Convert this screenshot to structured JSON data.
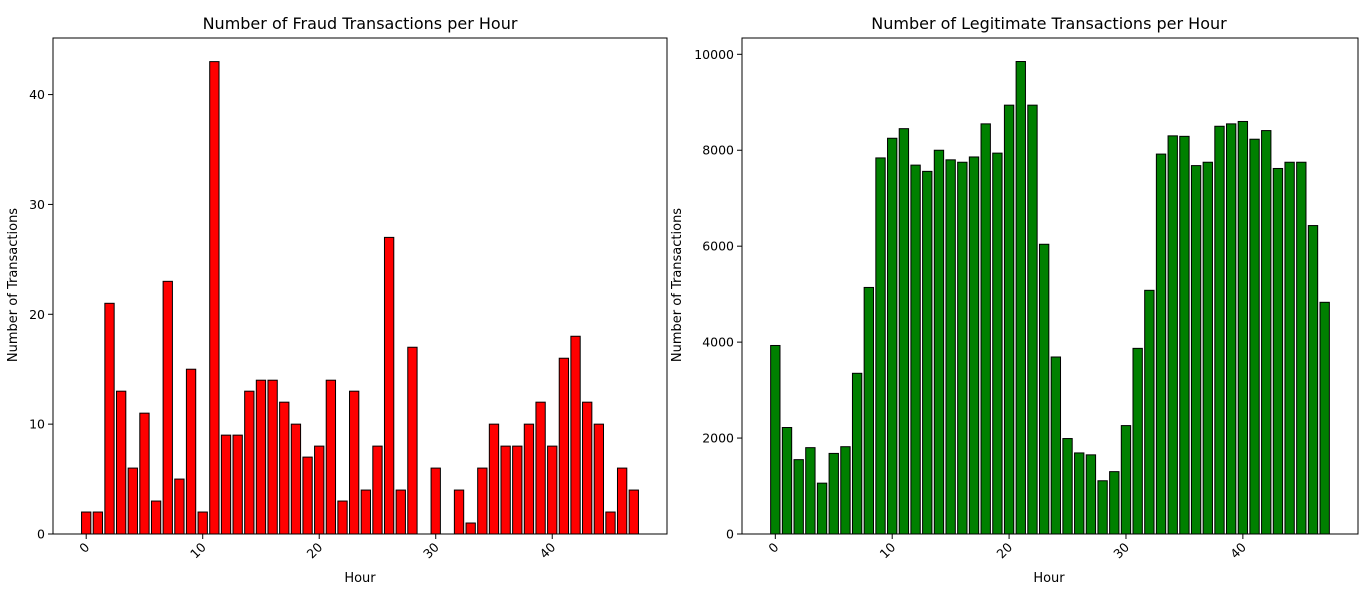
{
  "chart_data": [
    {
      "type": "bar",
      "title": "Number of Fraud Transactions per Hour",
      "xlabel": "Hour",
      "ylabel": "Number of Transactions",
      "color": "#ff0000",
      "edge_color": "#000000",
      "x": [
        0,
        1,
        2,
        3,
        4,
        5,
        6,
        7,
        8,
        9,
        10,
        11,
        12,
        13,
        14,
        15,
        16,
        17,
        18,
        19,
        20,
        21,
        22,
        23,
        24,
        25,
        26,
        27,
        28,
        29,
        30,
        31,
        32,
        33,
        34,
        35,
        36,
        37,
        38,
        39,
        40,
        41,
        42,
        43,
        44,
        45,
        46,
        47
      ],
      "values": [
        2,
        2,
        21,
        13,
        6,
        11,
        3,
        23,
        5,
        15,
        2,
        43,
        9,
        9,
        13,
        14,
        14,
        12,
        10,
        7,
        8,
        14,
        3,
        13,
        4,
        8,
        27,
        4,
        17,
        0,
        6,
        0,
        4,
        1,
        6,
        10,
        8,
        8,
        10,
        12,
        8,
        16,
        18,
        12,
        10,
        2,
        6,
        4
      ],
      "xticks": [
        0,
        10,
        20,
        30,
        40
      ],
      "xtick_labels": [
        "0",
        "10",
        "20",
        "30",
        "40"
      ],
      "yticks": [
        0,
        10,
        20,
        30,
        40
      ],
      "ytick_labels": [
        "0",
        "10",
        "20",
        "30",
        "40"
      ],
      "xlim": [
        -2.85,
        49.85
      ],
      "ylim": [
        0,
        45.15
      ],
      "grid": false
    },
    {
      "type": "bar",
      "title": "Number of Legitimate Transactions per Hour",
      "xlabel": "Hour",
      "ylabel": "Number of Transactions",
      "color": "#008000",
      "edge_color": "#000000",
      "x": [
        0,
        1,
        2,
        3,
        4,
        5,
        6,
        7,
        8,
        9,
        10,
        11,
        12,
        13,
        14,
        15,
        16,
        17,
        18,
        19,
        20,
        21,
        22,
        23,
        24,
        25,
        26,
        27,
        28,
        29,
        30,
        31,
        32,
        33,
        34,
        35,
        36,
        37,
        38,
        39,
        40,
        41,
        42,
        43,
        44,
        45,
        46,
        47
      ],
      "values": [
        3930,
        2220,
        1550,
        1800,
        1060,
        1680,
        1820,
        3350,
        5140,
        7840,
        8250,
        8450,
        7690,
        7560,
        8000,
        7800,
        7750,
        7860,
        8550,
        7940,
        8940,
        9850,
        8940,
        6040,
        3690,
        1990,
        1690,
        1650,
        1110,
        1300,
        2260,
        3870,
        5080,
        7920,
        8300,
        8290,
        7680,
        7750,
        8500,
        8550,
        8600,
        8230,
        8410,
        7620,
        7750,
        7750,
        6430,
        4830
      ],
      "xticks": [
        0,
        10,
        20,
        30,
        40
      ],
      "xtick_labels": [
        "0",
        "10",
        "20",
        "30",
        "40"
      ],
      "yticks": [
        0,
        2000,
        4000,
        6000,
        8000,
        10000
      ],
      "ytick_labels": [
        "0",
        "2000",
        "4000",
        "6000",
        "8000",
        "10000"
      ],
      "xlim": [
        -2.85,
        49.85
      ],
      "ylim": [
        0,
        10340
      ],
      "grid": false
    }
  ]
}
